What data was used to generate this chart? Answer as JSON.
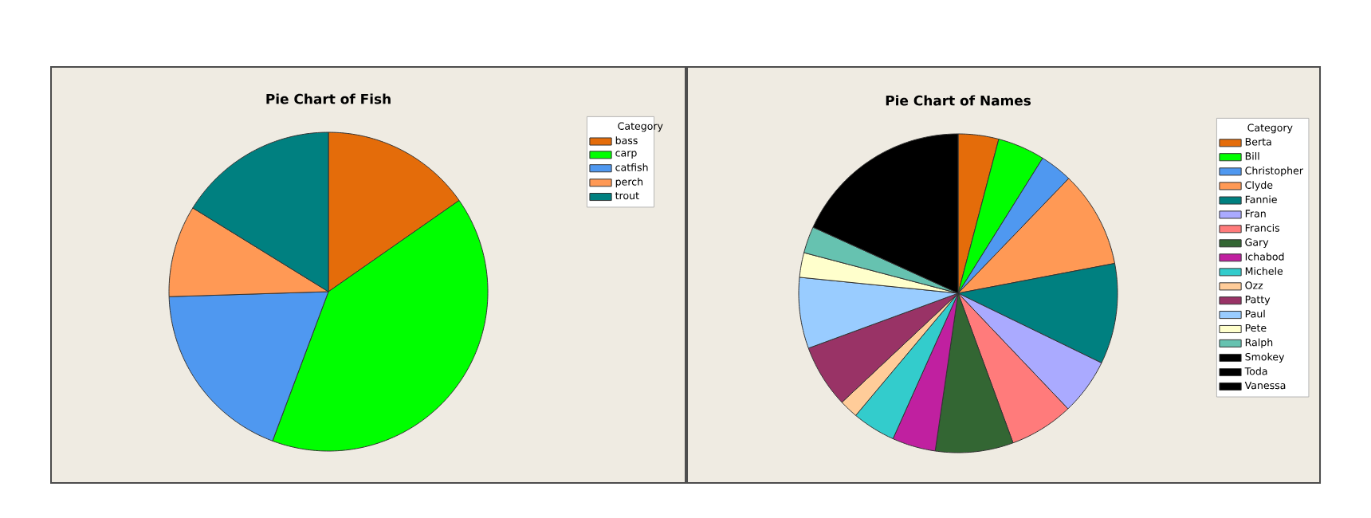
{
  "chart_data": [
    {
      "type": "pie",
      "title": "Pie Chart of Fish",
      "legend_title": "Category",
      "legend": "top right",
      "categories": [
        "bass",
        "carp",
        "catfish",
        "perch",
        "trout"
      ],
      "values": [
        15.3,
        40.4,
        18.8,
        9.3,
        16.2
      ],
      "colors": [
        "#e46c0a",
        "#00ff00",
        "#4f98f0",
        "#ff9955",
        "#008080"
      ]
    },
    {
      "type": "pie",
      "title": "Pie Chart of Names",
      "legend_title": "Category",
      "legend": "top right",
      "categories": [
        "Berta",
        "Bill",
        "Christopher",
        "Clyde",
        "Fannie",
        "Fran",
        "Francis",
        "Gary",
        "Ichabod",
        "Michele",
        "Ozz",
        "Patty",
        "Paul",
        "Pete",
        "Ralph",
        "Smokey",
        "Toda",
        "Vanessa"
      ],
      "values": [
        4.1,
        4.8,
        3.3,
        9.8,
        10.2,
        5.7,
        6.5,
        7.9,
        4.4,
        4.4,
        1.9,
        6.4,
        7.2,
        2.5,
        2.7,
        null,
        null,
        18.2
      ],
      "colors": [
        "#e46c0a",
        "#00ff00",
        "#4f98f0",
        "#ff9955",
        "#008080",
        "#aaaaff",
        "#ff7b7b",
        "#336633",
        "#c020a0",
        "#33cccc",
        "#ffcc99",
        "#993366",
        "#99ccff",
        "#ffffcc",
        "#66c2b0",
        "#000000",
        "#000000",
        "#000000"
      ]
    }
  ]
}
